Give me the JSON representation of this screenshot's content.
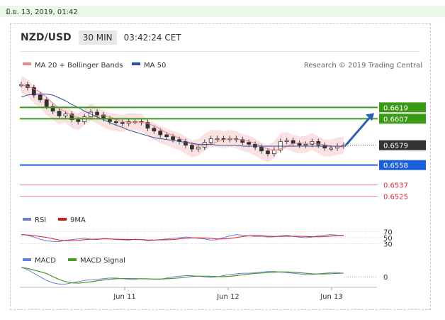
{
  "date_text": "มิ.ย. 13, 2019, 01:42",
  "header": {
    "pair": "NZD/USD",
    "timeframe": "30 MIN",
    "time": "03:42:24 CET"
  },
  "legend": {
    "ma20": "MA 20 + Bollinger Bands",
    "ma50": "MA 50",
    "credit": "Research © 2019 Trading Central",
    "ma20_color": "#e88a8a",
    "ma50_color": "#2f4f9a"
  },
  "rsi_legend": {
    "rsi": "RSI",
    "ma9": "9MA",
    "rsi_color": "#6a80d8",
    "ma9_color": "#d22020"
  },
  "macd_legend": {
    "macd": "MACD",
    "signal": "MACD Signal",
    "macd_color": "#6a80d8",
    "signal_color": "#4a9a2a"
  },
  "levels": [
    {
      "value": 0.6619,
      "label": "0.6619",
      "color": "#3a9a16",
      "style": "line",
      "tag": "filled"
    },
    {
      "value": 0.6607,
      "label": "0.6607",
      "color": "#3a9a16",
      "style": "line",
      "tag": "filled"
    },
    {
      "value": 0.6579,
      "label": "0.6579",
      "color": "#333333",
      "style": "dotted",
      "tag": "filled"
    },
    {
      "value": 0.6558,
      "label": "0.6558",
      "color": "#1a5fd8",
      "style": "line",
      "tag": "filled"
    },
    {
      "value": 0.6537,
      "label": "0.6537",
      "color": "#ea8a8a",
      "style": "line",
      "tag": "text"
    },
    {
      "value": 0.6525,
      "label": "0.6525",
      "color": "#ea8a8a",
      "style": "line",
      "tag": "text"
    }
  ],
  "rsi_ticks": [
    "70",
    "50",
    "30"
  ],
  "macd_ticks": [
    "0"
  ],
  "chart_data": {
    "type": "line",
    "x_labels": [
      "Jun 11",
      "Jun 12",
      "Jun 13"
    ],
    "price_range": [
      0.6515,
      0.665
    ],
    "close": [
      0.6643,
      0.664,
      0.6632,
      0.6627,
      0.662,
      0.6615,
      0.661,
      0.6612,
      0.6606,
      0.6604,
      0.6609,
      0.6614,
      0.6611,
      0.6607,
      0.6604,
      0.6603,
      0.6602,
      0.6604,
      0.6604,
      0.6603,
      0.6597,
      0.6594,
      0.659,
      0.6588,
      0.6585,
      0.6583,
      0.6579,
      0.6575,
      0.6577,
      0.6582,
      0.6586,
      0.6586,
      0.6585,
      0.6586,
      0.6585,
      0.6582,
      0.658,
      0.6577,
      0.6573,
      0.657,
      0.6574,
      0.6583,
      0.6584,
      0.6581,
      0.6579,
      0.658,
      0.6583,
      0.6579,
      0.6576,
      0.6576,
      0.6578,
      0.6579
    ],
    "ma50": [
      0.663,
      0.6632,
      0.6633,
      0.6633,
      0.6633,
      0.6632,
      0.6629,
      0.6626,
      0.6622,
      0.6619,
      0.6615,
      0.6612,
      0.6609,
      0.6606,
      0.6603,
      0.66,
      0.6598,
      0.6595,
      0.6593,
      0.6591,
      0.6589,
      0.6587,
      0.6586,
      0.6585,
      0.6584,
      0.6583,
      0.6582,
      0.6581,
      0.658,
      0.658,
      0.658,
      0.6579,
      0.6579,
      0.6579,
      0.6579,
      0.6578,
      0.6578,
      0.6578,
      0.6578,
      0.6578,
      0.6578,
      0.6578,
      0.6578,
      0.6578,
      0.6578,
      0.6578,
      0.6578,
      0.6578,
      0.6578,
      0.6578,
      0.6578,
      0.6578
    ],
    "rsi": [
      60,
      58,
      52,
      45,
      40,
      38,
      37,
      42,
      44,
      46,
      48,
      45,
      44,
      47,
      46,
      44,
      43,
      42,
      45,
      44,
      40,
      42,
      44,
      46,
      48,
      50,
      52,
      50,
      48,
      46,
      42,
      44,
      50,
      56,
      60,
      58,
      56,
      54,
      55,
      52,
      53,
      56,
      58,
      54,
      52,
      50,
      52,
      56,
      58,
      60,
      58,
      57
    ],
    "macd": [
      0.8,
      0.6,
      0.3,
      0.0,
      -0.3,
      -0.5,
      -0.6,
      -0.6,
      -0.5,
      -0.4,
      -0.3,
      -0.25,
      -0.2,
      -0.15,
      -0.1,
      -0.1,
      -0.15,
      -0.2,
      -0.2,
      -0.15,
      -0.15,
      -0.2,
      -0.2,
      -0.1,
      0.0,
      0.05,
      0.1,
      0.1,
      0.05,
      0.0,
      -0.05,
      0.0,
      0.1,
      0.2,
      0.25,
      0.3,
      0.3,
      0.35,
      0.4,
      0.45,
      0.45,
      0.4,
      0.35,
      0.3,
      0.25,
      0.2,
      0.2,
      0.25,
      0.3,
      0.35,
      0.35,
      0.3
    ]
  }
}
